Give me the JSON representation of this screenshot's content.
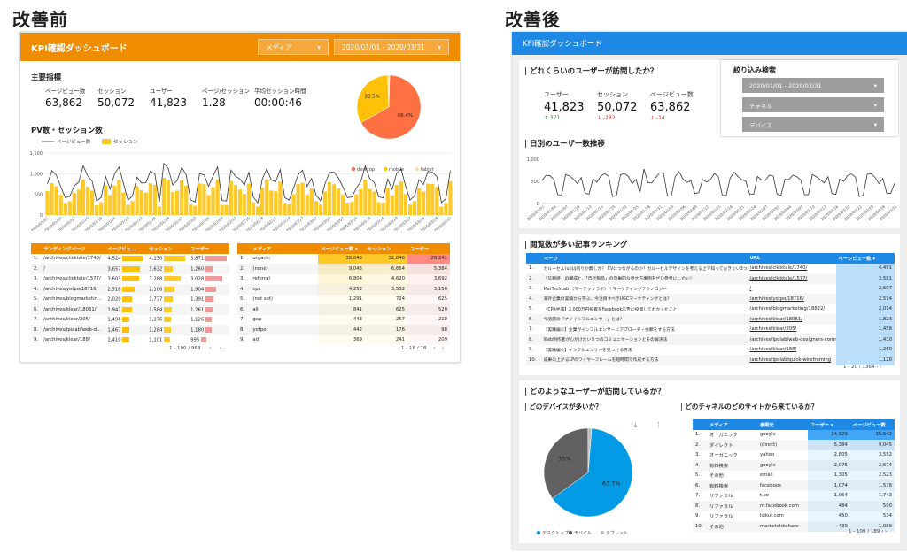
{
  "labels": {
    "before": "改善前",
    "after": "改善後"
  },
  "before": {
    "title": "KPI確認ダッシュボード",
    "media_dropdown": "メディア",
    "date_dropdown": "2020/01/01 - 2020/03/31",
    "kpi_title": "主要指標",
    "kpis": [
      {
        "label": "ページビュー数",
        "value": "63,862"
      },
      {
        "label": "セッション",
        "value": "50,072"
      },
      {
        "label": "ユーザー",
        "value": "41,823"
      },
      {
        "label": "ページ/セッション",
        "value": "1.28"
      },
      {
        "label": "平均セッション時間",
        "value": "00:00:46"
      }
    ],
    "pie": {
      "slices": [
        {
          "name": "desktop",
          "value": 66.4,
          "color": "#ff7043",
          "label": "66.4%"
        },
        {
          "name": "mobile",
          "value": 32.5,
          "color": "#ffc107",
          "label": "32.5%"
        },
        {
          "name": "tablet",
          "value": 1.1,
          "color": "#ffe0b2",
          "label": ""
        }
      ]
    },
    "chart_title": "PV数・セッション数",
    "legend": {
      "line": "ページビュー数",
      "bar": "セッション"
    },
    "yticks": [
      "1,500",
      "1,000",
      "500",
      "0"
    ],
    "xticks": [
      "2020/01/01",
      "2020/01/04",
      "2020/01/07",
      "2020/01/10",
      "2020/01/13",
      "2020/01/16",
      "2020/01/19",
      "2020/01/22",
      "2020/01/25",
      "2020/01/28",
      "2020/01/31",
      "2020/02/03",
      "2020/02/06",
      "2020/02/09",
      "2020/02/12",
      "2020/02/15",
      "2020/02/18",
      "2020/02/21",
      "2020/02/24",
      "2020/02/27",
      "2020/03/01",
      "2020/03/04",
      "2020/03/07",
      "2020/03/10",
      "2020/03/13",
      "2020/03/16",
      "2020/03/19",
      "2020/03/22",
      "2020/03/25",
      "2020/03/28",
      "2020/03/31"
    ],
    "table1": {
      "headers": [
        "ランディングページ",
        "ページビュ...",
        "セッション",
        "ユーザー"
      ],
      "rows": [
        [
          "1.",
          "/archives/clicktale/1740/",
          "4,524",
          "4,130",
          "3,871"
        ],
        [
          "2.",
          "/",
          "3,657",
          "1,632",
          "1,260"
        ],
        [
          "3.",
          "/archives/clicktale/1577/",
          "3,603",
          "3,288",
          "3,028"
        ],
        [
          "4.",
          "/archives/yotpo/18716/",
          "2,518",
          "2,106",
          "1,904"
        ],
        [
          "5.",
          "/archives/blogmarketin...",
          "2,020",
          "1,737",
          "1,391"
        ],
        [
          "6.",
          "/archives/klear/18061/",
          "1,947",
          "1,584",
          "1,261"
        ],
        [
          "7.",
          "/archives/klear/205/",
          "1,496",
          "1,276",
          "1,126"
        ],
        [
          "8.",
          "/archives/lpolab/web-d...",
          "1,467",
          "1,284",
          "1,180"
        ],
        [
          "9.",
          "/archives/klear/188/",
          "1,410",
          "1,101",
          "995"
        ]
      ],
      "pager": "1 - 100 / 968"
    },
    "table2": {
      "headers": [
        "メディア",
        "ページビュー数 ▾",
        "セッション",
        "ユーザー"
      ],
      "rows": [
        [
          "1.",
          "organic",
          "38,843",
          "32,848",
          "28,241"
        ],
        [
          "2.",
          "(none)",
          "9,045",
          "6,654",
          "5,384"
        ],
        [
          "3.",
          "referral",
          "6,804",
          "4,620",
          "3,692"
        ],
        [
          "4.",
          "cpc",
          "4,252",
          "3,532",
          "3,150"
        ],
        [
          "5.",
          "(not set)",
          "1,291",
          "724",
          "625"
        ],
        [
          "6.",
          "all",
          "841",
          "625",
          "520"
        ],
        [
          "7.",
          "gap",
          "443",
          "257",
          "210"
        ],
        [
          "8.",
          "yotpo",
          "442",
          "176",
          "98"
        ],
        [
          "9.",
          "ad",
          "369",
          "241",
          "209"
        ]
      ],
      "pager": "1 - 18 / 18"
    }
  },
  "after": {
    "title": "KPI確認ダッシュボード",
    "q1": "どれくらいのユーザーが訪問したか？",
    "kpis": [
      {
        "label": "ユーザー",
        "value": "41,823",
        "delta": "↑ 371",
        "color": "#2e7d32"
      },
      {
        "label": "セッション",
        "value": "50,072",
        "delta": "↓ -282",
        "color": "#c62828"
      },
      {
        "label": "ページビュー数",
        "value": "63,862",
        "delta": "↓ -14",
        "color": "#c62828"
      }
    ],
    "filter_title": "絞り込み検索",
    "filters": [
      "2020/01/01 - 2020/03/31",
      "チャネル",
      "デバイス"
    ],
    "trend_title": "日別のユーザー数推移",
    "yticks": [
      "1,000",
      "500",
      "0"
    ],
    "ranking_title": "閲覧数が多い記事ランキング",
    "ranking": {
      "headers": [
        "ページ",
        "URL",
        "ページビュー数 ▾"
      ],
      "rows": [
        [
          "1.",
          "カルーセル(ui)は有りか無しか？ CVにつながるのか？カルーセルデザインを考える上で知っておきたい3つのこと",
          "/archives/clicktale/1740/",
          "4,491"
        ],
        [
          "2.",
          "「信頼感」の醸成と、「自社製品」の効果的な見せ方事例をぜひ参考にしたい！",
          "/archives/clicktale/1577/",
          "3,581"
        ],
        [
          "3.",
          "MarTechLab 〈マーテックラボ〉｜マーケティングテクノロジー",
          "/",
          "2,607"
        ],
        [
          "4.",
          "海外企業の実績から学ぶ、今注目すべきUGCマーケティングとは？",
          "/archives/yotpo/18716/",
          "2,514"
        ],
        [
          "5.",
          "【CPA半減】2,000万円投資をFacebook広告に投資してわかったこと",
          "/archives/blogmarketing/18822/",
          "2,014"
        ],
        [
          "6.",
          "今話題の「ナノインフルエンサー」とは？",
          "/archives/klear/18061/",
          "1,823"
        ],
        [
          "7.",
          "【実践編①】企業がインフルエンサーにアプローチ・依頼をする方法",
          "/archives/klear/205/",
          "1,458"
        ],
        [
          "8.",
          "Web制作者が心がけたい５つのコミュニケーションとその解決法",
          "/archives/lpolab/web-designers-communicat...",
          "1,430"
        ],
        [
          "9.",
          "【実践編②】インフルエンサーを見つける方法",
          "/archives/klear/188/",
          "1,260"
        ],
        [
          "10.",
          "成果の上がるLPのワイヤーフレームを短時間で作成する方法",
          "/archives/lpolab/quick-wireframing",
          "1,120"
        ]
      ],
      "pager": "1 - 20 / 1364"
    },
    "who_title": "どのようなユーザーが訪問しているか？",
    "device_title": "どのデバイスが多いか？",
    "device_pie": {
      "slices": [
        {
          "name": "デスクトップ",
          "value": 63.7,
          "color": "#039be5",
          "label": "63.7%"
        },
        {
          "name": "モバイル",
          "value": 35,
          "color": "#616161",
          "label": "35%"
        },
        {
          "name": "タブレット",
          "value": 1.3,
          "color": "#bdbdbd",
          "label": ""
        }
      ]
    },
    "channel_title": "どのチャネルのどのサイトから来ているか？",
    "channel": {
      "headers": [
        "メディア",
        "参照元",
        "ユーザー ▾",
        "ページビュー数"
      ],
      "rows": [
        [
          "1.",
          "オーガニック",
          "google",
          "24,929",
          "35,542"
        ],
        [
          "2.",
          "ダイレクト",
          "(direct)",
          "5,384",
          "9,045"
        ],
        [
          "3.",
          "オーガニック",
          "yahoo",
          "2,805",
          "3,552"
        ],
        [
          "4.",
          "有料検索",
          "google",
          "2,075",
          "2,674"
        ],
        [
          "5.",
          "その他",
          "email",
          "1,305",
          "2,523"
        ],
        [
          "6.",
          "有料検索",
          "facebook",
          "1,074",
          "1,578"
        ],
        [
          "7.",
          "リファラル",
          "t.co",
          "1,064",
          "1,743"
        ],
        [
          "8.",
          "リファラル",
          "m.facebook.com",
          "484",
          "590"
        ],
        [
          "9.",
          "リファラル",
          "lixkul.com",
          "450",
          "534"
        ],
        [
          "10.",
          "その他",
          "marketohbshare",
          "439",
          "1,089"
        ]
      ],
      "pager": "1 - 100 / 189"
    }
  }
}
